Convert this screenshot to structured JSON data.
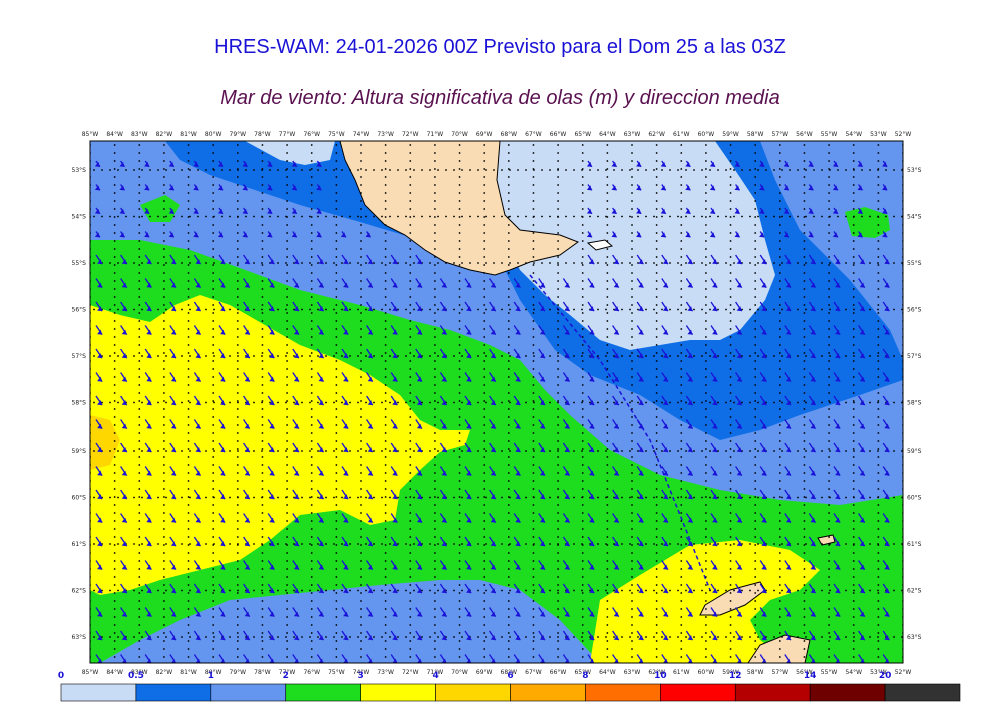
{
  "title": "HRES-WAM: 24-01-2026 00Z Previsto para el Dom 25 a las 03Z",
  "subtitle": "Mar de viento: Altura significativa de olas (m) y direccion media",
  "lon_labels": [
    "85°W",
    "84°W",
    "83°W",
    "82°W",
    "81°W",
    "80°W",
    "79°W",
    "78°W",
    "77°W",
    "76°W",
    "75°W",
    "74°W",
    "73°W",
    "72°W",
    "71°W",
    "70°W",
    "69°W",
    "68°W",
    "67°W",
    "66°W",
    "65°W",
    "64°W",
    "63°W",
    "62°W",
    "61°W",
    "60°W",
    "59°W",
    "58°W",
    "57°W",
    "56°W",
    "55°W",
    "54°W",
    "53°W",
    "52°W"
  ],
  "lat_labels": [
    "53°S",
    "54°S",
    "55°S",
    "56°S",
    "57°S",
    "58°S",
    "59°S",
    "60°S",
    "61°S",
    "62°S",
    "63°S"
  ],
  "colorbar": {
    "ticks": [
      "0",
      "0.5",
      "1",
      "2",
      "3",
      "4",
      "6",
      "8",
      "10",
      "12",
      "14",
      "20"
    ],
    "colors": [
      "#c8dcf5",
      "#0f6ee6",
      "#6496f0",
      "#1edc1e",
      "#ffff00",
      "#ffd700",
      "#ffaa00",
      "#ff6e00",
      "#ff0000",
      "#b40000",
      "#6e0000",
      "#323232"
    ]
  },
  "map_colors": {
    "band_0_0.5": "#c8dcf5",
    "band_0.5_1": "#0f6ee6",
    "band_1_2": "#6496f0",
    "band_2_3": "#1edc1e",
    "band_3_4": "#ffff00",
    "band_4_6": "#ffd700",
    "land": "#fadcb4",
    "arrows": "#1a12d6"
  }
}
